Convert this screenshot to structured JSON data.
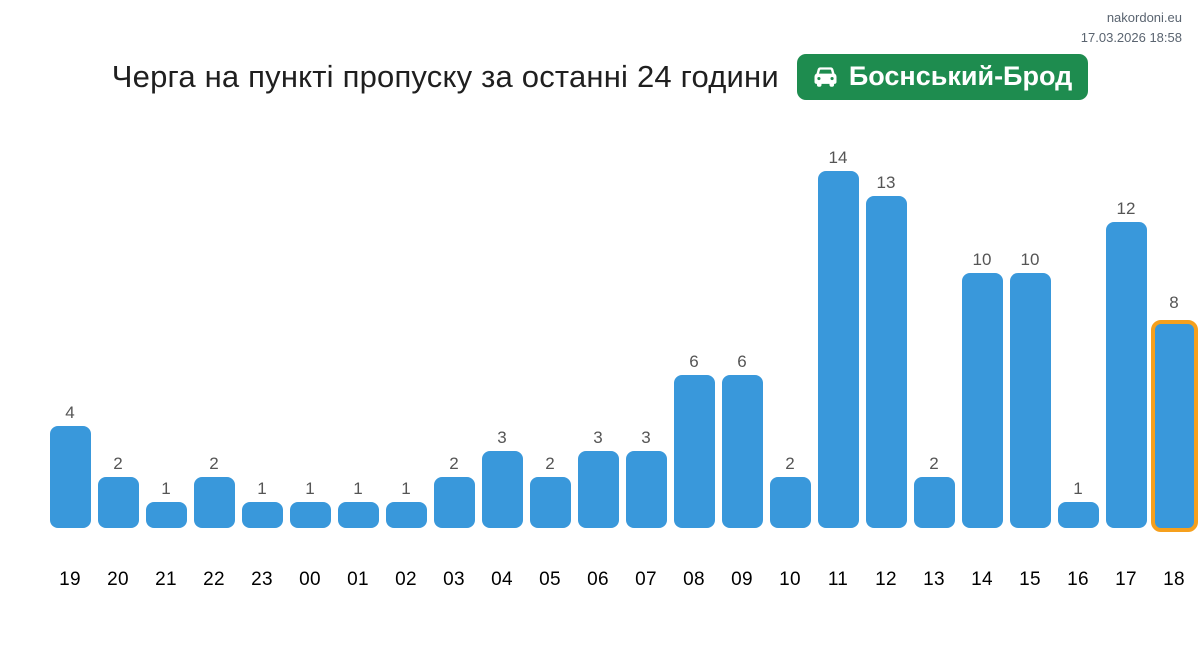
{
  "meta": {
    "site": "nakordoni.eu",
    "datetime": "17.03.2026 18:58"
  },
  "header": {
    "title": "Черга на пункті пропуску за останні 24 години",
    "badge_label": "Боснський-Брод",
    "badge_icon": "car-icon"
  },
  "colors": {
    "bar": "#3998db",
    "highlight_border": "#f6a01d",
    "badge_bg": "#1e8c4f",
    "value_label": "#555555",
    "axis_label": "#000000",
    "meta_text": "#5a6470"
  },
  "chart_data": {
    "type": "bar",
    "title": "Черга на пункті пропуску за останні 24 години",
    "categories": [
      "19",
      "20",
      "21",
      "22",
      "23",
      "00",
      "01",
      "02",
      "03",
      "04",
      "05",
      "06",
      "07",
      "08",
      "09",
      "10",
      "11",
      "12",
      "13",
      "14",
      "15",
      "16",
      "17",
      "18"
    ],
    "values": [
      4,
      2,
      1,
      2,
      1,
      1,
      1,
      1,
      2,
      3,
      2,
      3,
      3,
      6,
      6,
      2,
      14,
      13,
      2,
      10,
      10,
      1,
      12,
      8
    ],
    "highlighted_index": 23,
    "value_labels_shown": true,
    "xlabel": "",
    "ylabel": "",
    "ylim": [
      0,
      14
    ],
    "grid": false,
    "legend": "none"
  }
}
